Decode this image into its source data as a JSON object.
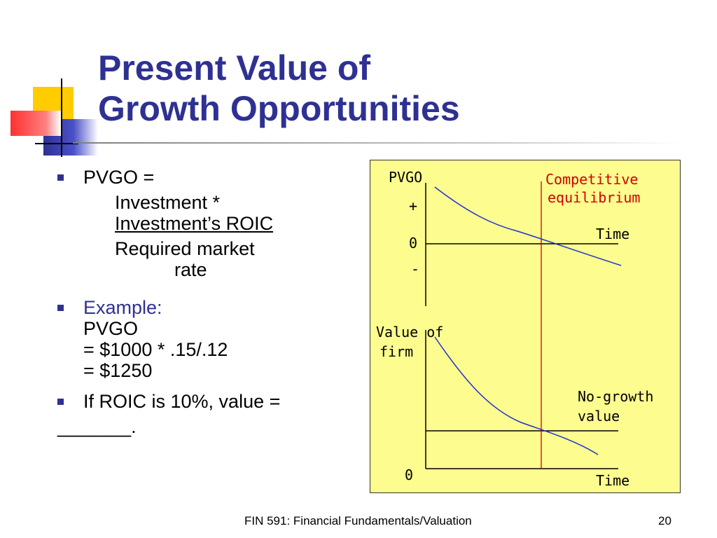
{
  "slide": {
    "title_line1": "Present Value of",
    "title_line2": "Growth Opportunities"
  },
  "bullets": {
    "b1": {
      "head": "PVGO =",
      "numerator_1": "Investment *",
      "numerator_2": "Investment’s ROIC",
      "denominator_1": "Required market",
      "denominator_2": "rate"
    },
    "b2": {
      "head": "Example:",
      "line1": "PVGO",
      "line2": "= $1000 * .15/.12",
      "line3": "= $1250"
    },
    "b3": {
      "line1": "If ROIC is 10%, value =",
      "line2": "_______."
    }
  },
  "diagram": {
    "top_panel": {
      "y_title": "PVGO",
      "y_ticks": [
        "+",
        "0",
        "-"
      ],
      "x_label": "Time",
      "marker_label_1": "Competitive",
      "marker_label_2": "equilibrium"
    },
    "bottom_panel": {
      "y_title_1": "Value of",
      "y_title_2": "firm",
      "y_tick": "0",
      "x_label": "Time",
      "reference_label_1": "No-growth",
      "reference_label_2": "value"
    },
    "colors": {
      "background": "#fcfc8f",
      "curve": "#1f2fd0",
      "axes": "#000000",
      "marker": "#d40000"
    }
  },
  "footer": {
    "course": "FIN 591: Financial Fundamentals/Valuation",
    "page_number": "20"
  },
  "colors": {
    "title": "#2e3192",
    "bullet": "#2e3192"
  }
}
